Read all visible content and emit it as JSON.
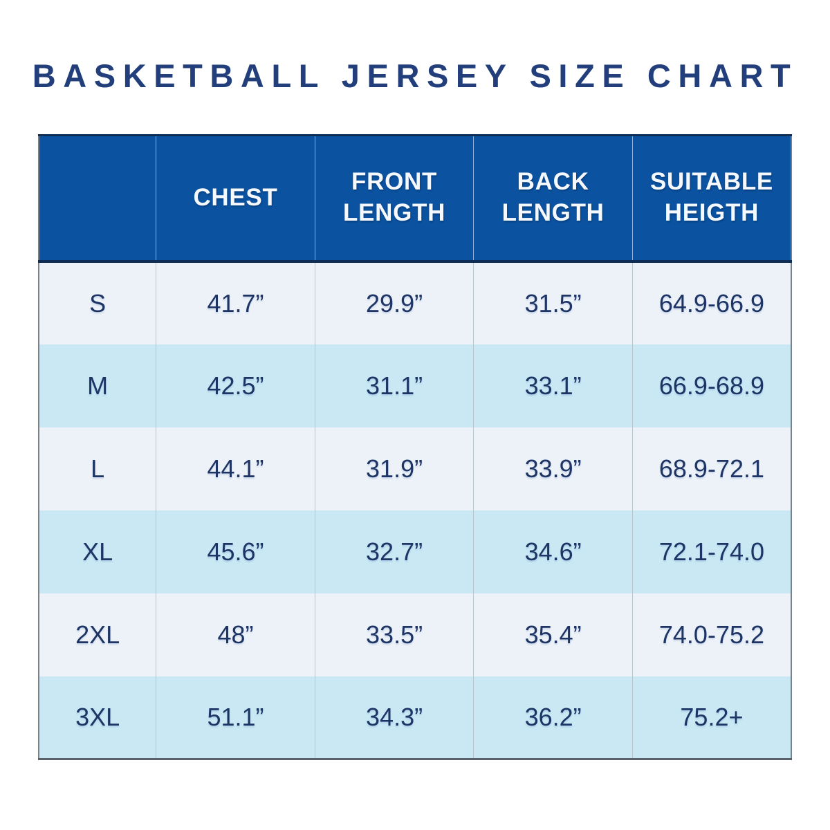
{
  "title": "BASKETBALL JERSEY SIZE CHART",
  "chart_data": {
    "type": "table",
    "title": "BASKETBALL JERSEY SIZE CHART",
    "columns": [
      "",
      "CHEST",
      "FRONT\nLENGTH",
      "BACK\nLENGTH",
      "SUITABLE\nHEIGTH"
    ],
    "rows": [
      [
        "S",
        "41.7”",
        "29.9”",
        "31.5”",
        "64.9-66.9"
      ],
      [
        "M",
        "42.5”",
        "31.1”",
        "33.1”",
        "66.9-68.9"
      ],
      [
        "L",
        "44.1”",
        "31.9”",
        "33.9”",
        "68.9-72.1"
      ],
      [
        "XL",
        "45.6”",
        "32.7”",
        "34.6”",
        "72.1-74.0"
      ],
      [
        "2XL",
        "48”",
        "33.5”",
        "35.4”",
        "74.0-75.2"
      ],
      [
        "3XL",
        "51.1”",
        "34.3”",
        "36.2”",
        "75.2+"
      ]
    ]
  },
  "colors": {
    "title_text": "#223f7c",
    "header_bg": "#0b53a1",
    "header_text": "#f5f9fd",
    "header_border": "#0e2d54",
    "row_light_bg": "#edf2f8",
    "row_cyan_bg": "#c9e8f4",
    "body_text": "#1d3464",
    "divider": "#b9c4cd"
  }
}
